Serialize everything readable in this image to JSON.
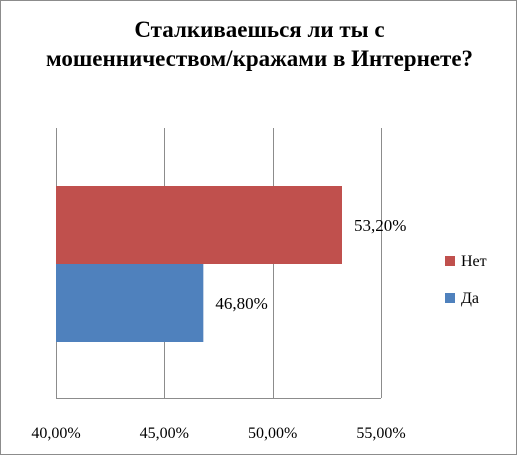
{
  "chart_data": {
    "type": "bar",
    "orientation": "horizontal",
    "title": "Сталкиваешься  ли ты с мошенничеством/кражами  в Интернете?",
    "categories": [
      "Нет",
      "Да"
    ],
    "values": [
      53.2,
      46.8
    ],
    "data_labels": [
      "53,20%",
      "46,80%"
    ],
    "colors": [
      "#c0504d",
      "#4f81bd"
    ],
    "xlim": [
      40,
      55
    ],
    "xticks": [
      40,
      45,
      50,
      55
    ],
    "xtick_labels": [
      "40,00%",
      "45,00%",
      "50,00%",
      "55,00%"
    ],
    "xlabel": "",
    "ylabel": "",
    "grid": true,
    "legend": {
      "position": "right",
      "entries": [
        {
          "label": "Нет",
          "color": "#c0504d"
        },
        {
          "label": "Да",
          "color": "#4f81bd"
        }
      ]
    }
  }
}
